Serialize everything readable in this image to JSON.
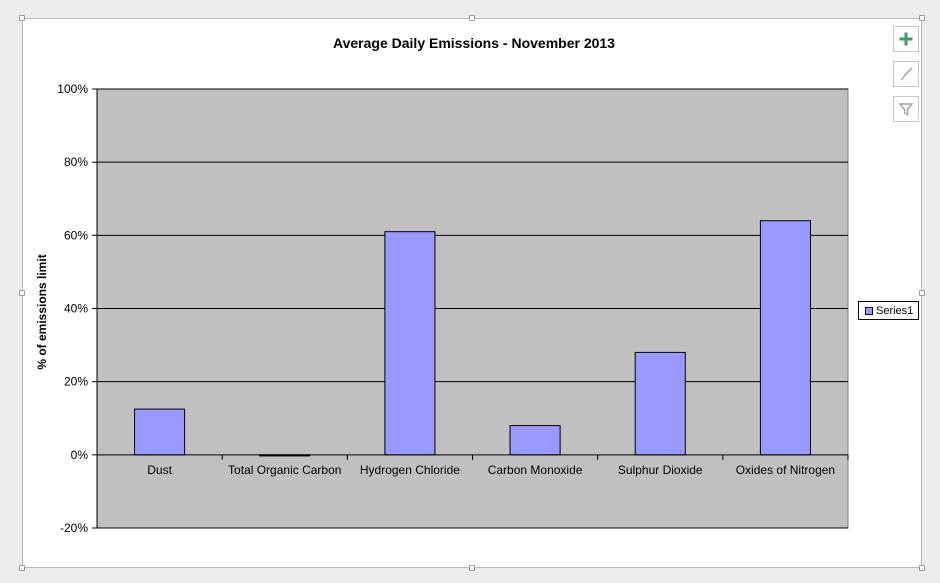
{
  "chart_data": {
    "type": "bar",
    "title": "Average Daily Emissions - November 2013",
    "ylabel": "% of emissions limit",
    "xlabel": "",
    "categories": [
      "Dust",
      "Total Organic Carbon",
      "Hydrogen Chloride",
      "Carbon Monoxide",
      "Sulphur Dioxide",
      "Oxides of Nitrogen"
    ],
    "series": [
      {
        "name": "Series1",
        "values": [
          12.5,
          -0.3,
          61,
          8,
          28,
          64
        ]
      }
    ],
    "ylim": [
      -20,
      100
    ],
    "yticks": [
      -20,
      0,
      20,
      40,
      60,
      80,
      100
    ],
    "ytick_labels": [
      "-20%",
      "0%",
      "20%",
      "40%",
      "60%",
      "80%",
      "100%"
    ],
    "grid": true,
    "legend_position": "right",
    "colors": {
      "bar": "#9999ff",
      "plot_background": "#c0c0c0",
      "gridline": "#000000"
    }
  },
  "side_buttons": {
    "icons": [
      "plus-icon",
      "brush-icon",
      "filter-icon"
    ]
  }
}
